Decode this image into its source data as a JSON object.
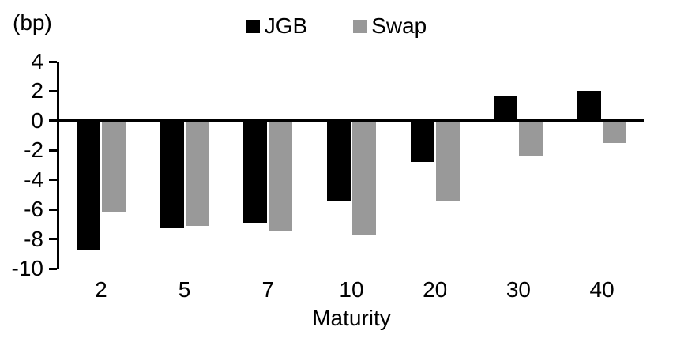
{
  "chart_data": {
    "type": "bar",
    "title": "",
    "unit_label": "(bp)",
    "xlabel": "Maturity",
    "ylabel": "",
    "categories": [
      "2",
      "5",
      "7",
      "10",
      "20",
      "30",
      "40"
    ],
    "series": [
      {
        "name": "JGB",
        "color": "#000000",
        "values": [
          -8.7,
          -7.3,
          -6.9,
          -5.4,
          -2.8,
          1.7,
          2.0
        ]
      },
      {
        "name": "Swap",
        "color": "#999999",
        "values": [
          -6.2,
          -7.1,
          -7.5,
          -7.7,
          -5.4,
          -2.4,
          -1.5
        ]
      }
    ],
    "ylim": [
      -10,
      4
    ],
    "yticks": [
      4,
      2,
      0,
      -2,
      -4,
      -6,
      -8,
      -10
    ],
    "legend_position": "top-center",
    "grid": false,
    "baseline": 0
  }
}
